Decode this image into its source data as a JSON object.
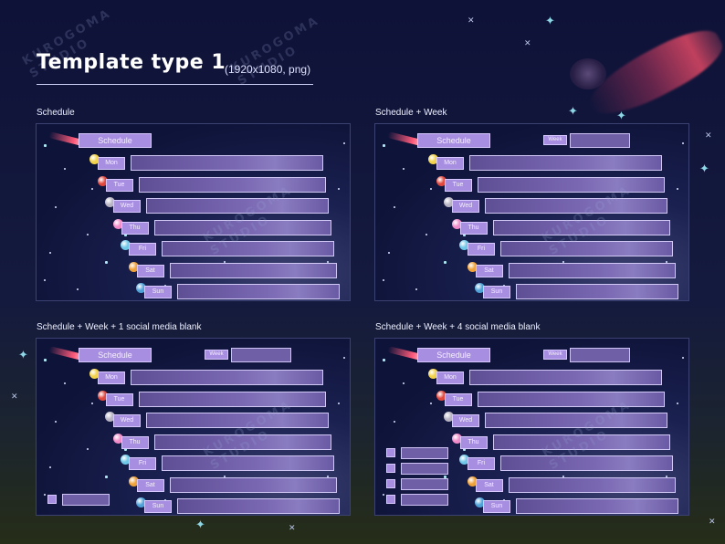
{
  "header": {
    "title": "Template type 1",
    "subtitle": "(1920x1080, png)",
    "watermark": "KUROGOMA\nSTUDIO"
  },
  "colors": {
    "background_top": "#0f1238",
    "background_bottom": "#262d18",
    "tag_purple": "#a88ee0",
    "bar_purple": "#7a68b3",
    "comet_pink": "#ff5a7a",
    "sparkle_cyan": "#8cd6e6"
  },
  "panels": [
    {
      "label": "Schedule",
      "schedule_label": "Schedule",
      "week_label": "",
      "has_week": false,
      "social_count": 0
    },
    {
      "label": "Schedule + Week",
      "schedule_label": "Schedule",
      "week_label": "Week",
      "has_week": true,
      "social_count": 0
    },
    {
      "label": "Schedule + Week + 1 social media blank",
      "schedule_label": "Schedule",
      "week_label": "Week",
      "has_week": true,
      "social_count": 1
    },
    {
      "label": "Schedule + Week + 4 social media blank",
      "schedule_label": "Schedule",
      "week_label": "Week",
      "has_week": true,
      "social_count": 4
    }
  ],
  "days": [
    {
      "label": "Mon",
      "planet": "sun-icon",
      "color": "#f2d24a"
    },
    {
      "label": "Tue",
      "planet": "mars-icon",
      "color": "#e0483e"
    },
    {
      "label": "Wed",
      "planet": "moon-icon",
      "color": "#b8b4c4"
    },
    {
      "label": "Thu",
      "planet": "pink-planet-icon",
      "color": "#f08ac8"
    },
    {
      "label": "Fri",
      "planet": "earth-icon",
      "color": "#6fc7e8"
    },
    {
      "label": "Sat",
      "planet": "saturn-icon",
      "color": "#f0a23a"
    },
    {
      "label": "Sun",
      "planet": "neptune-icon",
      "color": "#4fa2d8"
    }
  ]
}
